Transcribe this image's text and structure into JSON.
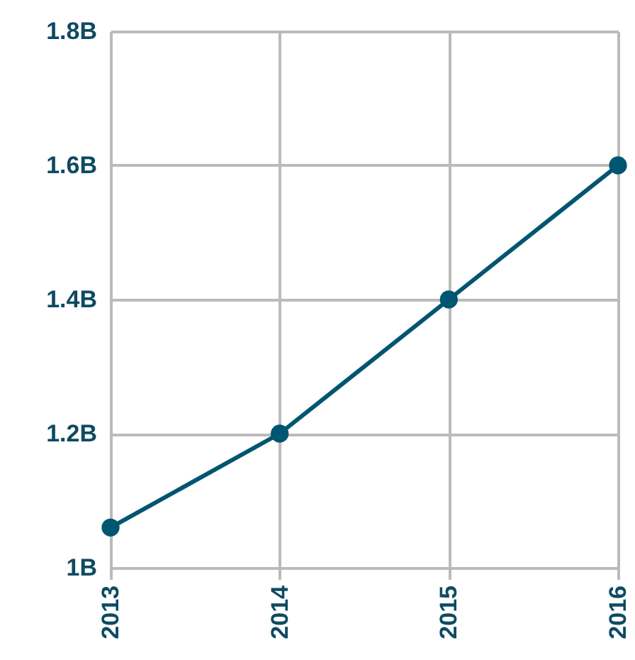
{
  "chart_data": {
    "type": "line",
    "categories": [
      "2013",
      "2014",
      "2015",
      "2016"
    ],
    "series": [
      {
        "color": "#005571",
        "values": [
          1.06,
          1.2,
          1.4,
          1.6
        ]
      }
    ],
    "ylim": [
      1,
      1.8
    ],
    "yticks": [
      {
        "value": 1,
        "label": "1B"
      },
      {
        "value": 1.2,
        "label": "1.2B"
      },
      {
        "value": 1.4,
        "label": "1.4B"
      },
      {
        "value": 1.6,
        "label": "1.6B"
      },
      {
        "value": 1.8,
        "label": "1.8B"
      }
    ],
    "grid": true,
    "marker": "circle",
    "line_style": "solid"
  }
}
